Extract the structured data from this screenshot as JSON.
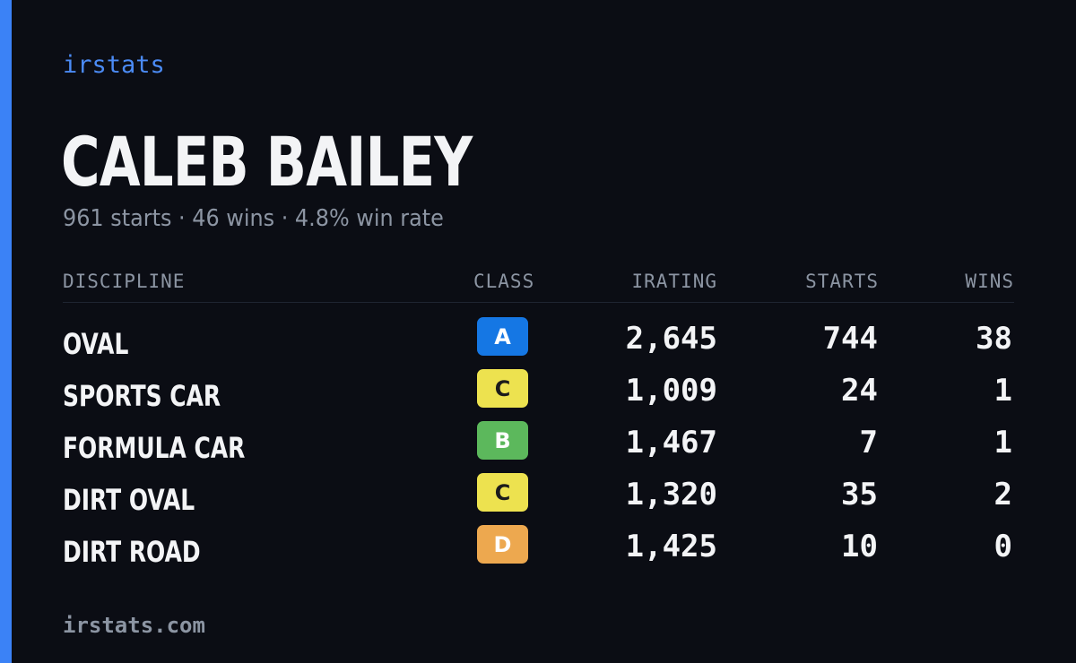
{
  "brand": "irstats",
  "colors": {
    "accent": "#3b82f6",
    "background": "#0b0d14"
  },
  "player": {
    "name": "CALEB BAILEY",
    "summary": "961 starts · 46 wins · 4.8% win rate"
  },
  "table": {
    "headers": {
      "discipline": "DISCIPLINE",
      "class": "CLASS",
      "irating": "IRATING",
      "starts": "STARTS",
      "wins": "WINS"
    },
    "rows": [
      {
        "discipline": "OVAL",
        "class": "A",
        "class_bg": "#1577e4",
        "class_fg": "#ffffff",
        "irating": "2,645",
        "starts": "744",
        "wins": "38"
      },
      {
        "discipline": "SPORTS CAR",
        "class": "C",
        "class_bg": "#ede24f",
        "class_fg": "#1b1b1b",
        "irating": "1,009",
        "starts": "24",
        "wins": "1"
      },
      {
        "discipline": "FORMULA CAR",
        "class": "B",
        "class_bg": "#5cb85c",
        "class_fg": "#ffffff",
        "irating": "1,467",
        "starts": "7",
        "wins": "1"
      },
      {
        "discipline": "DIRT OVAL",
        "class": "C",
        "class_bg": "#ede24f",
        "class_fg": "#1b1b1b",
        "irating": "1,320",
        "starts": "35",
        "wins": "2"
      },
      {
        "discipline": "DIRT ROAD",
        "class": "D",
        "class_bg": "#eda84f",
        "class_fg": "#ffffff",
        "irating": "1,425",
        "starts": "10",
        "wins": "0"
      }
    ]
  },
  "footer": "irstats.com"
}
